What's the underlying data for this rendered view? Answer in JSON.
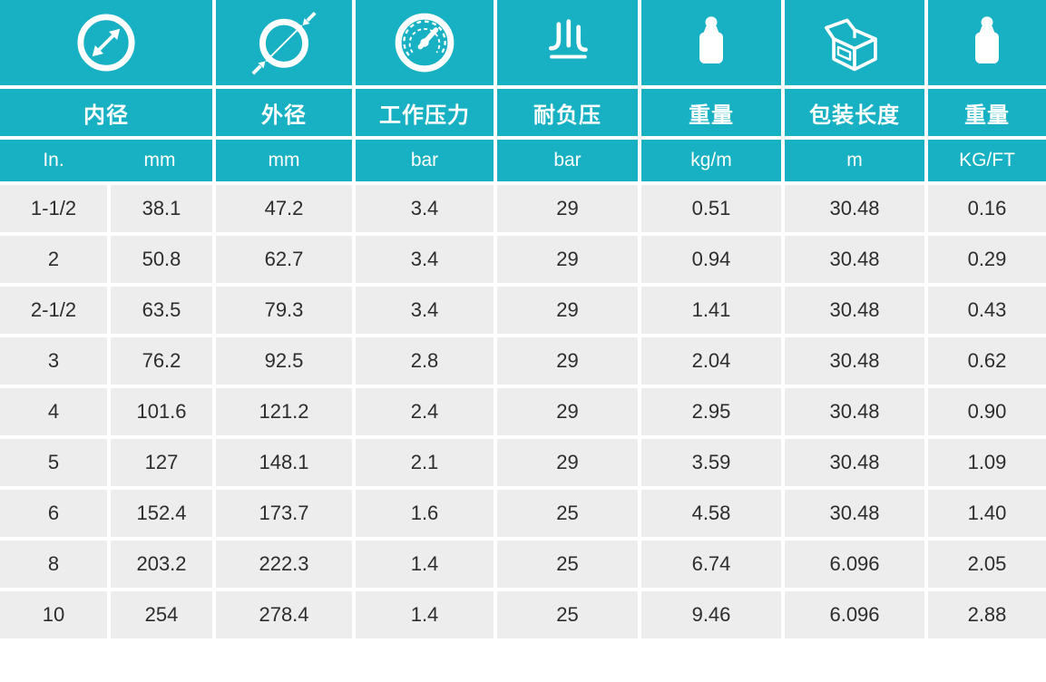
{
  "theme": {
    "teal": "#17b1c3",
    "row_background": "#ededed",
    "data_text": "#2d2d2d",
    "header_text": "#ffffff"
  },
  "header": {
    "columns": [
      {
        "icon": "inner-diameter-icon",
        "label": "内径",
        "units": [
          "In.",
          "mm"
        ]
      },
      {
        "icon": "outer-diameter-icon",
        "label": "外径",
        "units": [
          "mm"
        ]
      },
      {
        "icon": "pressure-gauge-icon",
        "label": "工作压力",
        "units": [
          "bar"
        ]
      },
      {
        "icon": "vacuum-icon",
        "label": "耐负压",
        "units": [
          "bar"
        ]
      },
      {
        "icon": "weight-icon",
        "label": "重量",
        "units": [
          "kg/m"
        ]
      },
      {
        "icon": "package-box-icon",
        "label": "包装长度",
        "units": [
          "m"
        ]
      },
      {
        "icon": "weight-icon",
        "label": "重量",
        "units": [
          "KG/FT"
        ]
      }
    ]
  },
  "table": {
    "rows": [
      [
        "1-1/2",
        "38.1",
        "47.2",
        "3.4",
        "29",
        "0.51",
        "30.48",
        "0.16"
      ],
      [
        "2",
        "50.8",
        "62.7",
        "3.4",
        "29",
        "0.94",
        "30.48",
        "0.29"
      ],
      [
        "2-1/2",
        "63.5",
        "79.3",
        "3.4",
        "29",
        "1.41",
        "30.48",
        "0.43"
      ],
      [
        "3",
        "76.2",
        "92.5",
        "2.8",
        "29",
        "2.04",
        "30.48",
        "0.62"
      ],
      [
        "4",
        "101.6",
        "121.2",
        "2.4",
        "29",
        "2.95",
        "30.48",
        "0.90"
      ],
      [
        "5",
        "127",
        "148.1",
        "2.1",
        "29",
        "3.59",
        "30.48",
        "1.09"
      ],
      [
        "6",
        "152.4",
        "173.7",
        "1.6",
        "25",
        "4.58",
        "30.48",
        "1.40"
      ],
      [
        "8",
        "203.2",
        "222.3",
        "1.4",
        "25",
        "6.74",
        "6.096",
        "2.05"
      ],
      [
        "10",
        "254",
        "278.4",
        "1.4",
        "25",
        "9.46",
        "6.096",
        "2.88"
      ]
    ]
  }
}
